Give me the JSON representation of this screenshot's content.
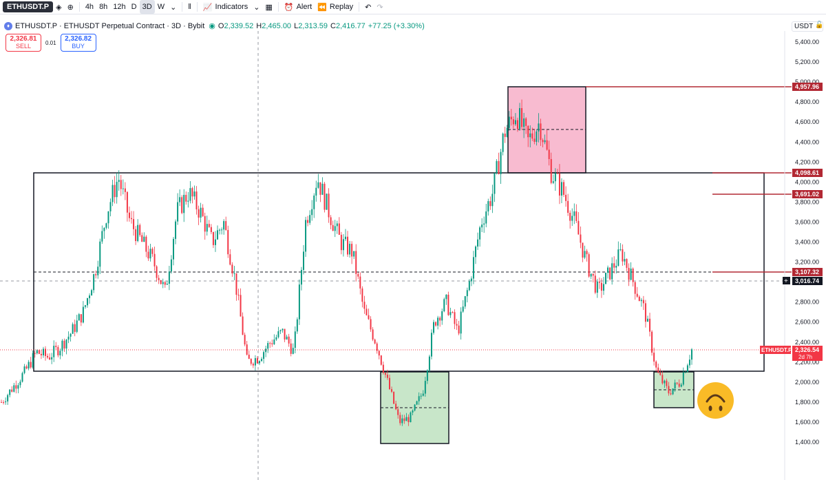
{
  "toolbar": {
    "symbol": "ETHUSDT.P",
    "intervals": [
      "4h",
      "8h",
      "12h",
      "D",
      "3D",
      "W"
    ],
    "active_interval": "3D",
    "indicators_label": "Indicators",
    "alert_label": "Alert",
    "replay_label": "Replay"
  },
  "legend": {
    "title": "ETHUSDT.P · ETHUSDT Perpetual Contract · 3D · Bybit",
    "open": "2,339.52",
    "high": "2,465.00",
    "low": "2,313.59",
    "close": "2,416.77",
    "change": "+77.25 (+3.30%)"
  },
  "trade": {
    "sell_price": "2,326.81",
    "sell_label": "SELL",
    "spread": "0.01",
    "buy_price": "2,326.82",
    "buy_label": "BUY"
  },
  "price_axis": {
    "currency": "USDT",
    "ticks": [
      "5,400.00",
      "5,200.00",
      "5,000.00",
      "4,800.00",
      "4,600.00",
      "4,400.00",
      "4,200.00",
      "4,000.00",
      "3,800.00",
      "3,600.00",
      "3,400.00",
      "3,200.00",
      "2,800.00",
      "2,600.00",
      "2,400.00",
      "2,200.00",
      "2,000.00",
      "1,800.00",
      "1,600.00",
      "1,400.00"
    ]
  },
  "price_labels": {
    "l4957": "4,957.96",
    "l4098": "4,098.61",
    "l3691": "3,691.02",
    "l3107": "3,107.32",
    "crosshair": "3,016.74",
    "current_symbol": "ETHUSDT.P",
    "current": "2,326.54",
    "countdown": "2d 7h"
  },
  "colors": {
    "up": "#089981",
    "down": "#f23645",
    "level_line": "#b22833",
    "supply_zone": "#f8bbd0",
    "demand_zone": "#c8e6c9"
  },
  "chart_data": {
    "type": "candlestick",
    "y_range": [
      1200,
      5500
    ],
    "levels": [
      4957.96,
      4098.61,
      3691.02,
      3107.32
    ],
    "current_price": 2326.54,
    "crosshair_price": 3016.74,
    "close_path": [
      1800,
      1950,
      2100,
      2300,
      2250,
      2350,
      2500,
      2700,
      3100,
      3700,
      4050,
      3600,
      3400,
      3200,
      2900,
      3700,
      3900,
      3700,
      3400,
      3600,
      3000,
      2200,
      2250,
      2400,
      2500,
      2300,
      3600,
      4050,
      3700,
      3400,
      3300,
      2700,
      2400,
      2000,
      1600,
      1650,
      1900,
      2600,
      2800,
      2500,
      3000,
      3600,
      3900,
      4500,
      4700,
      4400,
      4600,
      4100,
      3900,
      3600,
      3200,
      2900,
      3100,
      3300,
      3000,
      2700,
      2100,
      1900,
      2000,
      2326
    ]
  }
}
